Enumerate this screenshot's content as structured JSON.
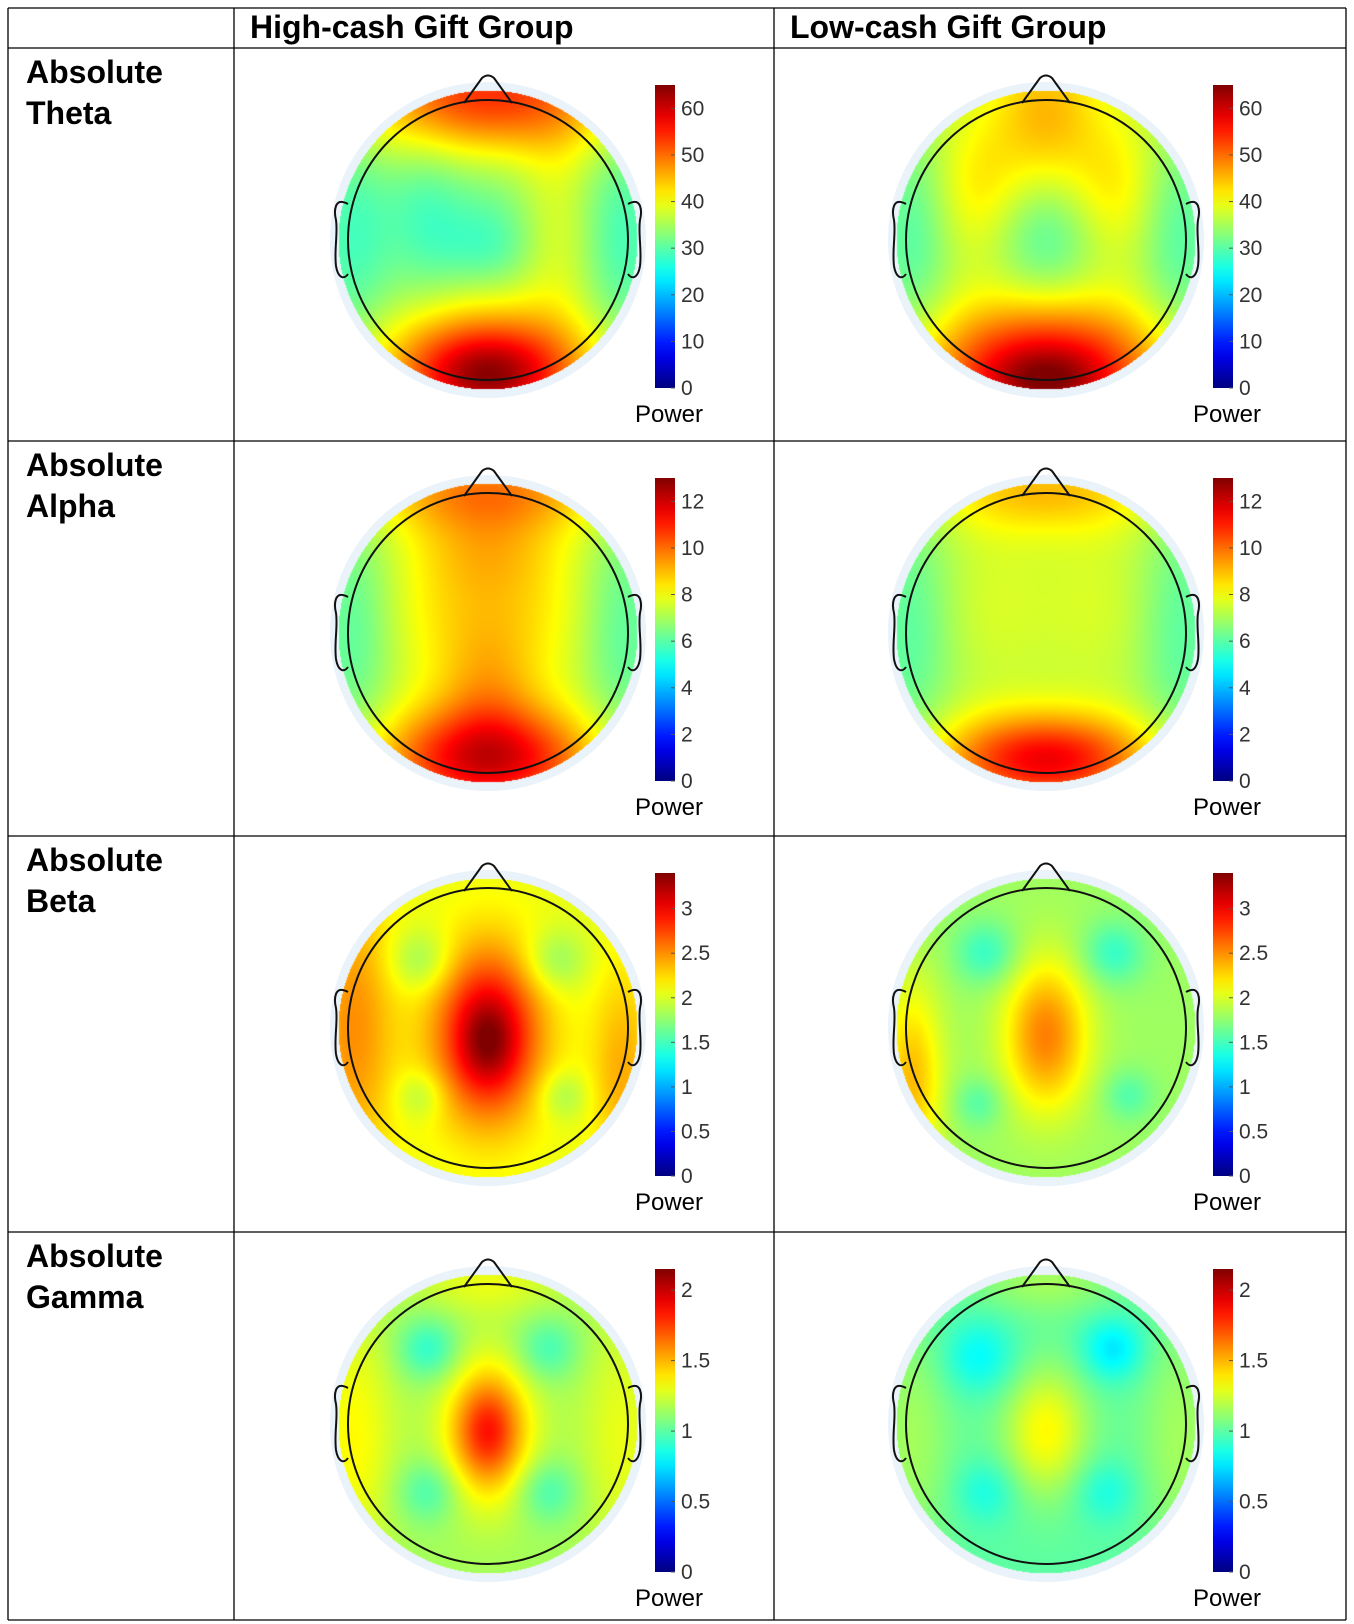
{
  "columns": [
    "High-cash Gift Group",
    "Low-cash Gift Group"
  ],
  "rows": [
    {
      "label_line1": "Absolute",
      "label_line2": "Theta",
      "scale": {
        "max": 65,
        "ticks": [
          "0",
          "10",
          "20",
          "30",
          "40",
          "50",
          "60"
        ],
        "tick_values": [
          0,
          10,
          20,
          30,
          40,
          50,
          60
        ]
      },
      "cells": [
        {
          "colorbar_label": "Power",
          "background": 35,
          "blobs": [
            {
              "u": 0,
              "v": -0.95,
              "sx": 0.6,
              "sy": 0.3,
              "a": 20
            },
            {
              "u": 0,
              "v": -0.45,
              "sx": 0.45,
              "sy": 0.35,
              "a": -4
            },
            {
              "u": -0.42,
              "v": -0.15,
              "sx": 0.18,
              "sy": 0.4,
              "a": -4
            },
            {
              "u": 0.45,
              "v": -0.1,
              "sx": 0.2,
              "sy": 0.45,
              "a": 5
            },
            {
              "u": 0,
              "v": 0.05,
              "sx": 0.25,
              "sy": 0.2,
              "a": -5
            },
            {
              "u": 0,
              "v": 0.85,
              "sx": 0.5,
              "sy": 0.28,
              "a": 22
            },
            {
              "u": 0,
              "v": 0.95,
              "sx": 0.3,
              "sy": 0.18,
              "a": 8
            },
            {
              "u": -0.9,
              "v": 0,
              "sx": 0.2,
              "sy": 0.55,
              "a": -6
            },
            {
              "u": 0.9,
              "v": 0,
              "sx": 0.2,
              "sy": 0.55,
              "a": -6
            }
          ]
        },
        {
          "colorbar_label": "Power",
          "background": 37,
          "blobs": [
            {
              "u": 0,
              "v": -0.85,
              "sx": 0.25,
              "sy": 0.35,
              "a": 8
            },
            {
              "u": -0.45,
              "v": -0.35,
              "sx": 0.22,
              "sy": 0.32,
              "a": 5
            },
            {
              "u": 0.45,
              "v": -0.35,
              "sx": 0.22,
              "sy": 0.32,
              "a": 5
            },
            {
              "u": 0,
              "v": 0,
              "sx": 0.25,
              "sy": 0.3,
              "a": -7
            },
            {
              "u": 0,
              "v": 0.85,
              "sx": 0.55,
              "sy": 0.3,
              "a": 22
            },
            {
              "u": 0,
              "v": 0.97,
              "sx": 0.3,
              "sy": 0.15,
              "a": 8
            },
            {
              "u": -0.9,
              "v": 0,
              "sx": 0.2,
              "sy": 0.55,
              "a": -7
            },
            {
              "u": 0.9,
              "v": 0,
              "sx": 0.2,
              "sy": 0.55,
              "a": -7
            }
          ]
        }
      ]
    },
    {
      "label_line1": "Absolute",
      "label_line2": "Alpha",
      "scale": {
        "max": 13,
        "ticks": [
          "0",
          "2",
          "4",
          "6",
          "8",
          "10",
          "12"
        ],
        "tick_values": [
          0,
          2,
          4,
          6,
          8,
          10,
          12
        ]
      },
      "cells": [
        {
          "colorbar_label": "Power",
          "background": 7.2,
          "blobs": [
            {
              "u": 0,
              "v": -0.95,
              "sx": 0.55,
              "sy": 0.2,
              "a": 2.2
            },
            {
              "u": 0,
              "v": -0.55,
              "sx": 0.3,
              "sy": 0.2,
              "a": 0.6
            },
            {
              "u": -0.25,
              "v": -0.2,
              "sx": 0.35,
              "sy": 0.5,
              "a": 1
            },
            {
              "u": 0.25,
              "v": -0.2,
              "sx": 0.35,
              "sy": 0.5,
              "a": 1
            },
            {
              "u": 0,
              "v": 0.85,
              "sx": 0.5,
              "sy": 0.25,
              "a": 4.5
            },
            {
              "u": 0,
              "v": 0.4,
              "sx": 0.22,
              "sy": 0.3,
              "a": 1
            },
            {
              "u": -0.9,
              "v": 0,
              "sx": 0.2,
              "sy": 0.6,
              "a": -1.2
            },
            {
              "u": 0.9,
              "v": 0,
              "sx": 0.2,
              "sy": 0.6,
              "a": -1.2
            }
          ]
        },
        {
          "colorbar_label": "Power",
          "background": 7,
          "blobs": [
            {
              "u": 0,
              "v": -0.95,
              "sx": 0.55,
              "sy": 0.2,
              "a": 1.8
            },
            {
              "u": -0.35,
              "v": -0.2,
              "sx": 0.3,
              "sy": 0.5,
              "a": 0.6
            },
            {
              "u": 0.35,
              "v": -0.2,
              "sx": 0.3,
              "sy": 0.5,
              "a": 0.6
            },
            {
              "u": 0,
              "v": 0.85,
              "sx": 0.5,
              "sy": 0.22,
              "a": 4.5
            },
            {
              "u": -0.9,
              "v": 0,
              "sx": 0.2,
              "sy": 0.6,
              "a": -1
            },
            {
              "u": 0.9,
              "v": 0,
              "sx": 0.2,
              "sy": 0.6,
              "a": -1
            }
          ]
        }
      ]
    },
    {
      "label_line1": "Absolute",
      "label_line2": "Beta",
      "scale": {
        "max": 3.4,
        "ticks": [
          "0",
          "0.5",
          "1",
          "1.5",
          "2",
          "2.5",
          "3"
        ],
        "tick_values": [
          0,
          0.5,
          1,
          1.5,
          2,
          2.5,
          3
        ]
      },
      "cells": [
        {
          "colorbar_label": "Power",
          "background": 2.05,
          "blobs": [
            {
              "u": 0,
              "v": 0.05,
              "sx": 0.25,
              "sy": 0.4,
              "a": 1.15
            },
            {
              "u": 0,
              "v": 0.1,
              "sx": 0.12,
              "sy": 0.18,
              "a": 0.25
            },
            {
              "u": -0.9,
              "v": 0,
              "sx": 0.2,
              "sy": 0.7,
              "a": 0.45
            },
            {
              "u": 0.9,
              "v": 0.3,
              "sx": 0.15,
              "sy": 0.5,
              "a": 0.35
            },
            {
              "u": -0.45,
              "v": -0.45,
              "sx": 0.15,
              "sy": 0.15,
              "a": -0.3
            },
            {
              "u": 0.45,
              "v": -0.45,
              "sx": 0.15,
              "sy": 0.15,
              "a": -0.3
            },
            {
              "u": -0.45,
              "v": 0.45,
              "sx": 0.12,
              "sy": 0.12,
              "a": -0.25
            },
            {
              "u": 0.5,
              "v": 0.45,
              "sx": 0.12,
              "sy": 0.12,
              "a": -0.25
            }
          ]
        },
        {
          "colorbar_label": "Power",
          "background": 1.8,
          "blobs": [
            {
              "u": 0,
              "v": 0.05,
              "sx": 0.2,
              "sy": 0.35,
              "a": 0.75
            },
            {
              "u": -0.9,
              "v": 0.35,
              "sx": 0.15,
              "sy": 0.45,
              "a": 0.55
            },
            {
              "u": -0.4,
              "v": -0.5,
              "sx": 0.15,
              "sy": 0.15,
              "a": -0.35
            },
            {
              "u": 0.45,
              "v": -0.5,
              "sx": 0.15,
              "sy": 0.15,
              "a": -0.35
            },
            {
              "u": -0.45,
              "v": 0.5,
              "sx": 0.12,
              "sy": 0.12,
              "a": -0.25
            },
            {
              "u": 0.55,
              "v": 0.45,
              "sx": 0.12,
              "sy": 0.12,
              "a": -0.25
            }
          ]
        }
      ]
    },
    {
      "label_line1": "Absolute",
      "label_line2": "Gamma",
      "scale": {
        "max": 2.15,
        "ticks": [
          "0",
          "0.5",
          "1",
          "1.5",
          "2"
        ],
        "tick_values": [
          0,
          0.5,
          1,
          1.5,
          2
        ]
      },
      "cells": [
        {
          "colorbar_label": "Power",
          "background": 1.15,
          "blobs": [
            {
              "u": 0,
              "v": 0.05,
              "sx": 0.2,
              "sy": 0.32,
              "a": 0.55
            },
            {
              "u": 0,
              "v": 0.05,
              "sx": 0.12,
              "sy": 0.18,
              "a": 0.15
            },
            {
              "u": -0.4,
              "v": -0.5,
              "sx": 0.15,
              "sy": 0.15,
              "a": -0.25
            },
            {
              "u": 0.4,
              "v": -0.5,
              "sx": 0.15,
              "sy": 0.15,
              "a": -0.2
            },
            {
              "u": -0.4,
              "v": 0.45,
              "sx": 0.15,
              "sy": 0.15,
              "a": -0.2
            },
            {
              "u": 0.4,
              "v": 0.45,
              "sx": 0.15,
              "sy": 0.15,
              "a": -0.2
            },
            {
              "u": -0.9,
              "v": 0.1,
              "sx": 0.2,
              "sy": 0.6,
              "a": 0.2
            },
            {
              "u": 0.9,
              "v": 0.1,
              "sx": 0.2,
              "sy": 0.6,
              "a": 0.15
            },
            {
              "u": 0,
              "v": -0.95,
              "sx": 0.35,
              "sy": 0.15,
              "a": 0.15
            }
          ]
        },
        {
          "colorbar_label": "Power",
          "background": 1.0,
          "blobs": [
            {
              "u": 0,
              "v": 0.05,
              "sx": 0.2,
              "sy": 0.3,
              "a": 0.35
            },
            {
              "u": -0.45,
              "v": -0.45,
              "sx": 0.18,
              "sy": 0.18,
              "a": -0.2
            },
            {
              "u": 0.45,
              "v": -0.5,
              "sx": 0.15,
              "sy": 0.15,
              "a": -0.25
            },
            {
              "u": -0.4,
              "v": 0.45,
              "sx": 0.15,
              "sy": 0.15,
              "a": -0.15
            },
            {
              "u": 0.4,
              "v": 0.45,
              "sx": 0.15,
              "sy": 0.15,
              "a": -0.15
            },
            {
              "u": -0.9,
              "v": 0.1,
              "sx": 0.2,
              "sy": 0.6,
              "a": 0.15
            },
            {
              "u": 0.9,
              "v": 0.1,
              "sx": 0.2,
              "sy": 0.6,
              "a": 0.15
            },
            {
              "u": 0,
              "v": -0.95,
              "sx": 0.35,
              "sy": 0.15,
              "a": 0.15
            }
          ]
        }
      ]
    }
  ]
}
